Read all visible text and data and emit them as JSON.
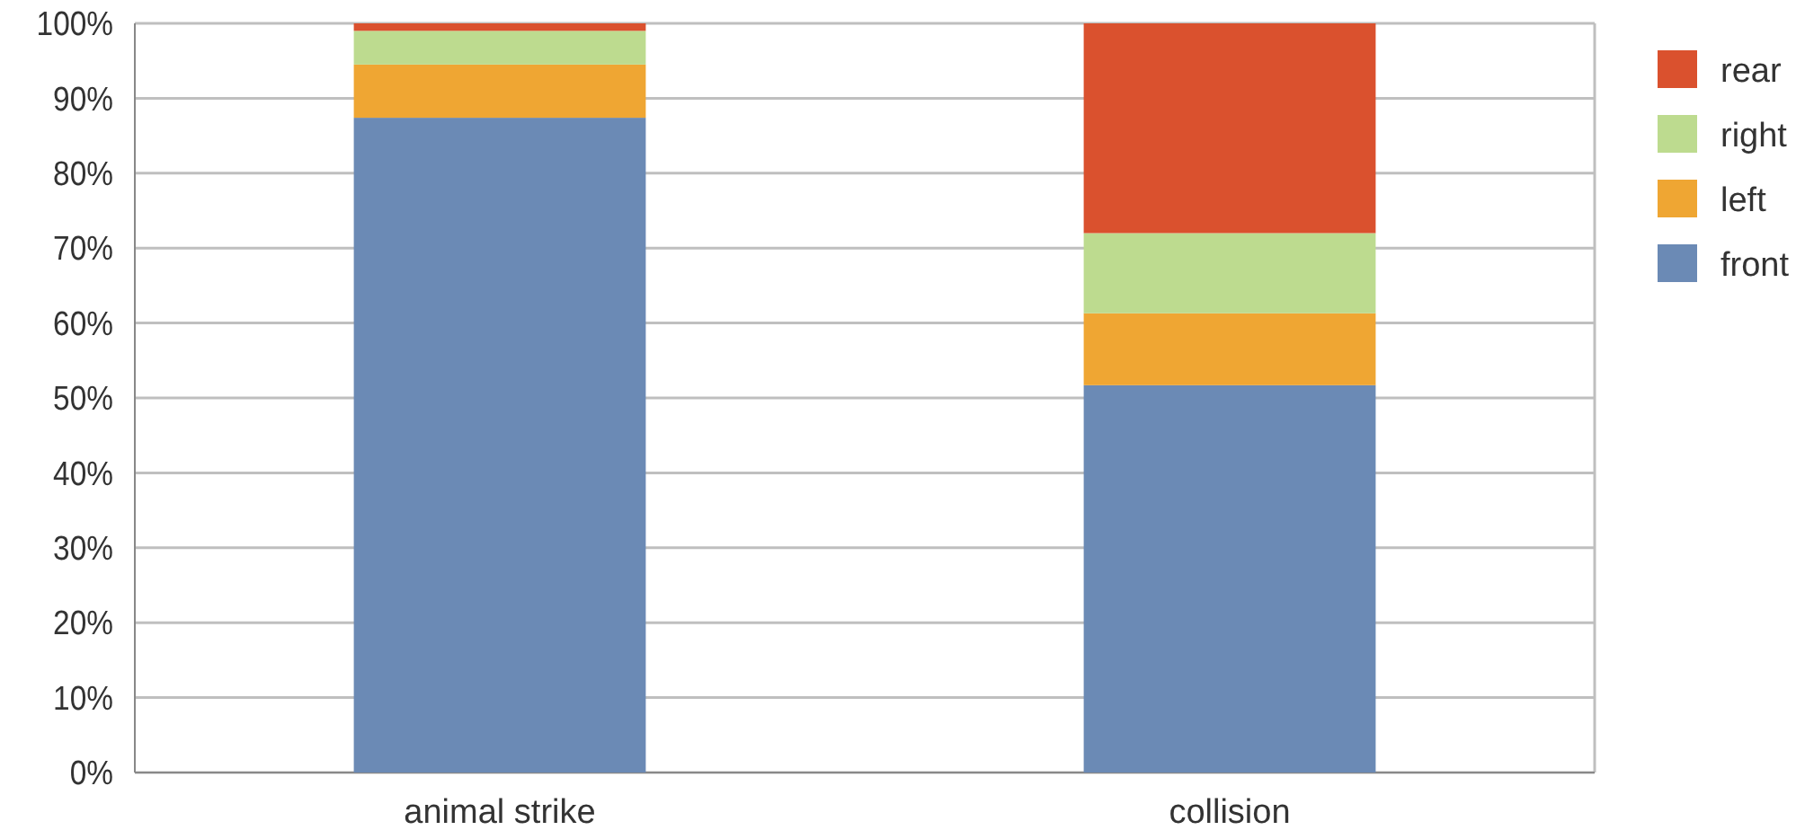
{
  "chart_data": {
    "type": "bar",
    "stacked": true,
    "categories": [
      "animal strike",
      "collision"
    ],
    "series": [
      {
        "name": "front",
        "color": "#6b8ab5",
        "values": [
          87.4,
          51.7
        ]
      },
      {
        "name": "left",
        "color": "#efa633",
        "values": [
          7.1,
          9.6
        ]
      },
      {
        "name": "right",
        "color": "#bddb8f",
        "values": [
          4.5,
          10.7
        ]
      },
      {
        "name": "rear",
        "color": "#da512e",
        "values": [
          1.0,
          28.0
        ]
      }
    ],
    "ylim": [
      0,
      100
    ],
    "yticks": [
      {
        "value": 0,
        "label": "0%"
      },
      {
        "value": 10,
        "label": "10%"
      },
      {
        "value": 20,
        "label": "20%"
      },
      {
        "value": 30,
        "label": "30%"
      },
      {
        "value": 40,
        "label": "40%"
      },
      {
        "value": 50,
        "label": "50%"
      },
      {
        "value": 60,
        "label": "60%"
      },
      {
        "value": 70,
        "label": "70%"
      },
      {
        "value": 80,
        "label": "80%"
      },
      {
        "value": 90,
        "label": "90%"
      },
      {
        "value": 100,
        "label": "100%"
      }
    ],
    "grid": "y",
    "legend": "right"
  }
}
